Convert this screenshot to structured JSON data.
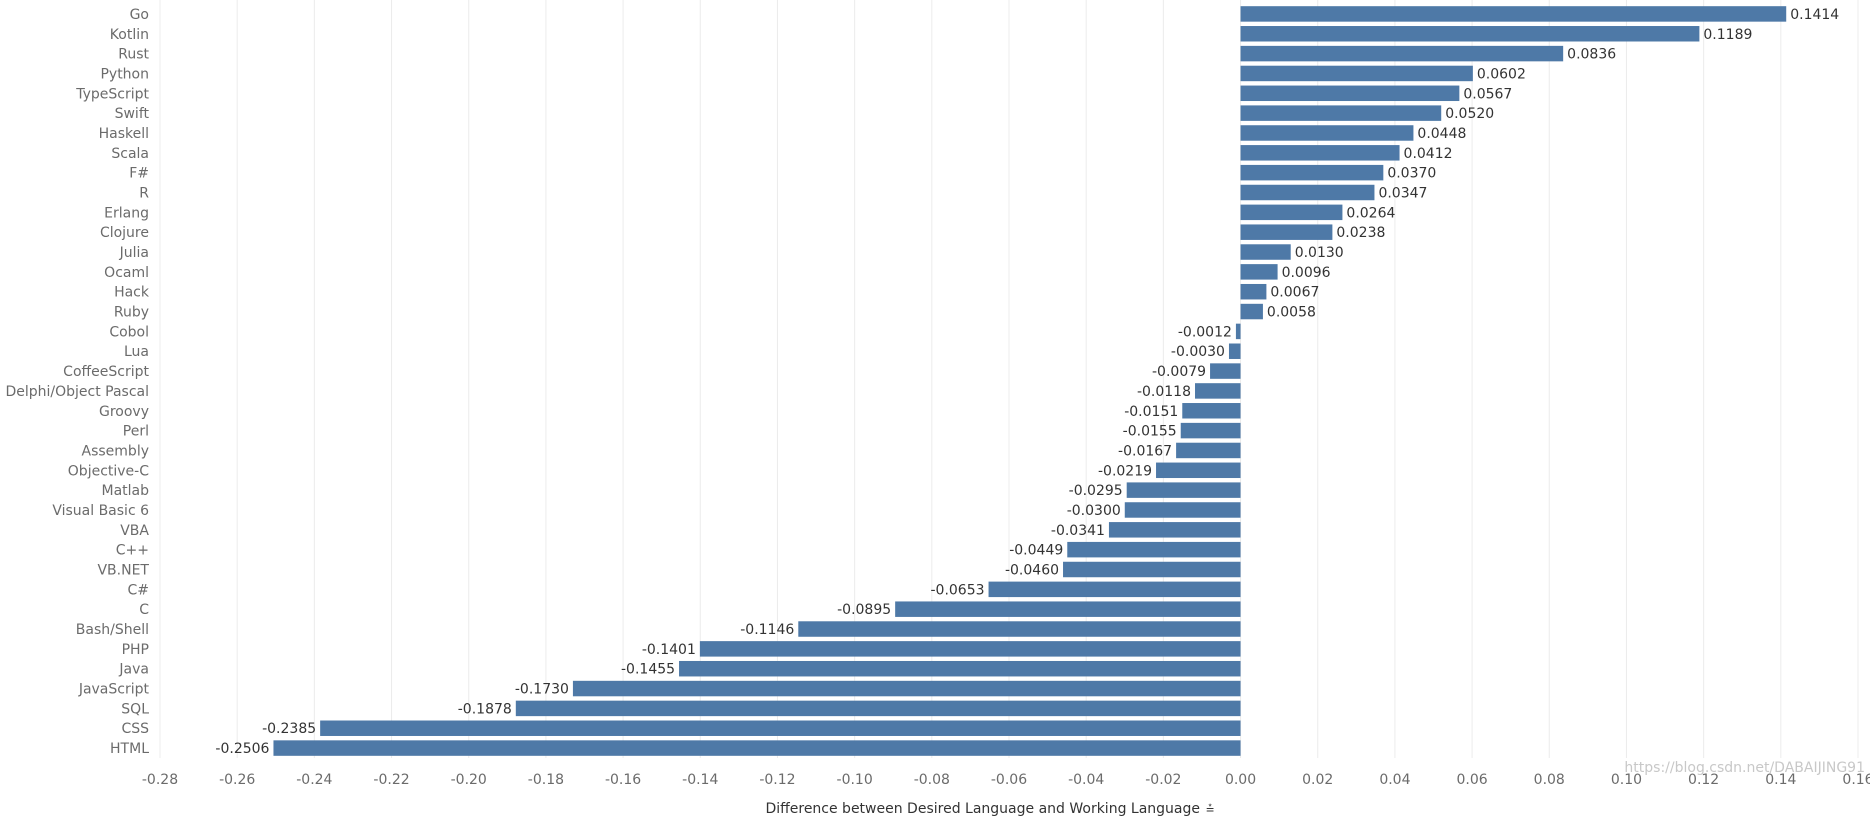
{
  "chart_data": {
    "type": "bar",
    "orientation": "horizontal",
    "categories": [
      "Go",
      "Kotlin",
      "Rust",
      "Python",
      "TypeScript",
      "Swift",
      "Haskell",
      "Scala",
      "F#",
      "R",
      "Erlang",
      "Clojure",
      "Julia",
      "Ocaml",
      "Hack",
      "Ruby",
      "Cobol",
      "Lua",
      "CoffeeScript",
      "Delphi/Object Pascal",
      "Groovy",
      "Perl",
      "Assembly",
      "Objective-C",
      "Matlab",
      "Visual Basic 6",
      "VBA",
      "C++",
      "VB.NET",
      "C#",
      "C",
      "Bash/Shell",
      "PHP",
      "Java",
      "JavaScript",
      "SQL",
      "CSS",
      "HTML"
    ],
    "values": [
      0.1414,
      0.1189,
      0.0836,
      0.0602,
      0.0567,
      0.052,
      0.0448,
      0.0412,
      0.037,
      0.0347,
      0.0264,
      0.0238,
      0.013,
      0.0096,
      0.0067,
      0.0058,
      -0.0012,
      -0.003,
      -0.0079,
      -0.0118,
      -0.0151,
      -0.0155,
      -0.0167,
      -0.0219,
      -0.0295,
      -0.03,
      -0.0341,
      -0.0449,
      -0.046,
      -0.0653,
      -0.0895,
      -0.1146,
      -0.1401,
      -0.1455,
      -0.173,
      -0.1878,
      -0.2385,
      -0.2506
    ],
    "value_labels": [
      "0.1414",
      "0.1189",
      "0.0836",
      "0.0602",
      "0.0567",
      "0.0520",
      "0.0448",
      "0.0412",
      "0.0370",
      "0.0347",
      "0.0264",
      "0.0238",
      "0.0130",
      "0.0096",
      "0.0067",
      "0.0058",
      "-0.0012",
      "-0.0030",
      "-0.0079",
      "-0.0118",
      "-0.0151",
      "-0.0155",
      "-0.0167",
      "-0.0219",
      "-0.0295",
      "-0.0300",
      "-0.0341",
      "-0.0449",
      "-0.0460",
      "-0.0653",
      "-0.0895",
      "-0.1146",
      "-0.1401",
      "-0.1455",
      "-0.1730",
      "-0.1878",
      "-0.2385",
      "-0.2506"
    ],
    "xlabel": "Difference between Desired Language and Working Language",
    "xlim": [
      -0.28,
      0.16
    ],
    "xticks": [
      -0.28,
      -0.26,
      -0.24,
      -0.22,
      -0.2,
      -0.18,
      -0.16,
      -0.14,
      -0.12,
      -0.1,
      -0.08,
      -0.06,
      -0.04,
      -0.02,
      0.0,
      0.02,
      0.04,
      0.06,
      0.08,
      0.1,
      0.12,
      0.14,
      0.16
    ],
    "xtick_labels": [
      "-0.28",
      "-0.26",
      "-0.24",
      "-0.22",
      "-0.20",
      "-0.18",
      "-0.16",
      "-0.14",
      "-0.12",
      "-0.10",
      "-0.08",
      "-0.06",
      "-0.04",
      "-0.02",
      "0.00",
      "0.02",
      "0.04",
      "0.06",
      "0.08",
      "0.10",
      "0.12",
      "0.14",
      "0.16"
    ],
    "grid": "vertical",
    "bar_color": "#4e79a7",
    "sort_icon": "sort-descending-icon",
    "sort_glyph": "⩮"
  },
  "watermark": "https://blog.csdn.net/DABAIJING91"
}
